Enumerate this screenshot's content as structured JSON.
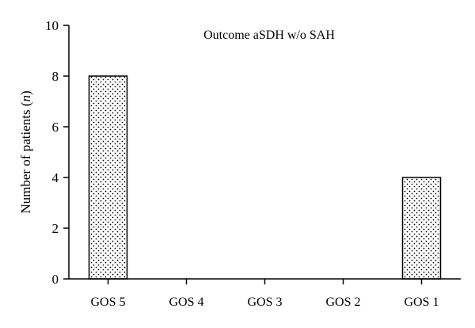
{
  "chart_data": {
    "type": "bar",
    "title": "Outcome aSDH w/o SAH",
    "ylabel_prefix": "Number of patients (",
    "ylabel_var": "n",
    "ylabel_suffix": ")",
    "xlabel": "",
    "categories": [
      "GOS 5",
      "GOS 4",
      "GOS 3",
      "GOS 2",
      "GOS 1"
    ],
    "values": [
      8,
      0,
      0,
      0,
      4
    ],
    "ylim": [
      0,
      10
    ],
    "yticks": [
      0,
      2,
      4,
      6,
      8,
      10
    ],
    "grid": false,
    "bar_fill": "dotted",
    "colors": {
      "bar_stroke": "#000000",
      "bar_dots": "#000000",
      "background": "#ffffff"
    }
  }
}
